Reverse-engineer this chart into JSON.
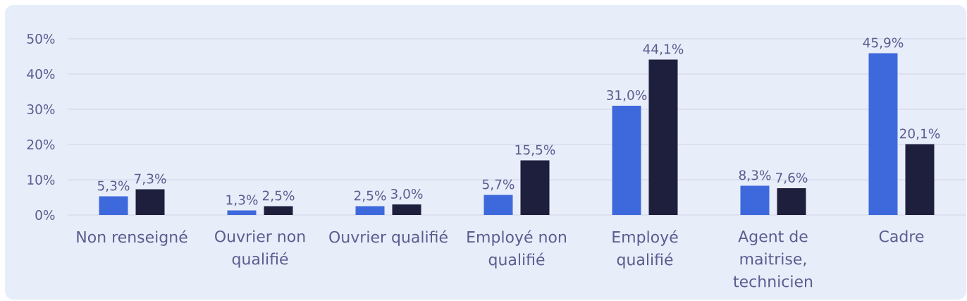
{
  "chart_data": {
    "type": "bar",
    "categories": [
      "Non renseigné",
      "Ouvrier non qualifié",
      "Ouvrier qualifié",
      "Employé non qualifié",
      "Employé qualifié",
      "Agent de maitrise, technicien",
      "Cadre"
    ],
    "series": [
      {
        "color": "#3e69dd",
        "values": [
          5.3,
          1.3,
          2.5,
          5.7,
          31.0,
          8.3,
          45.9
        ],
        "value_labels": [
          "5,3%",
          "1,3%",
          "2,5%",
          "5,7%",
          "31,0%",
          "8,3%",
          "45,9%"
        ]
      },
      {
        "color": "#1e1f3c",
        "values": [
          7.3,
          2.5,
          3.0,
          15.5,
          44.1,
          7.6,
          20.1
        ],
        "value_labels": [
          "7,3%",
          "2,5%",
          "3,0%",
          "15,5%",
          "44,1%",
          "7,6%",
          "20,1%"
        ]
      }
    ],
    "ylim": [
      0,
      50
    ],
    "yticks": [
      {
        "value": 0,
        "label": "0%"
      },
      {
        "value": 10,
        "label": "10%"
      },
      {
        "value": 20,
        "label": "20%"
      },
      {
        "value": 30,
        "label": "30%"
      },
      {
        "value": 40,
        "label": "40%"
      },
      {
        "value": 50,
        "label": "50%"
      }
    ],
    "grid": "y"
  }
}
